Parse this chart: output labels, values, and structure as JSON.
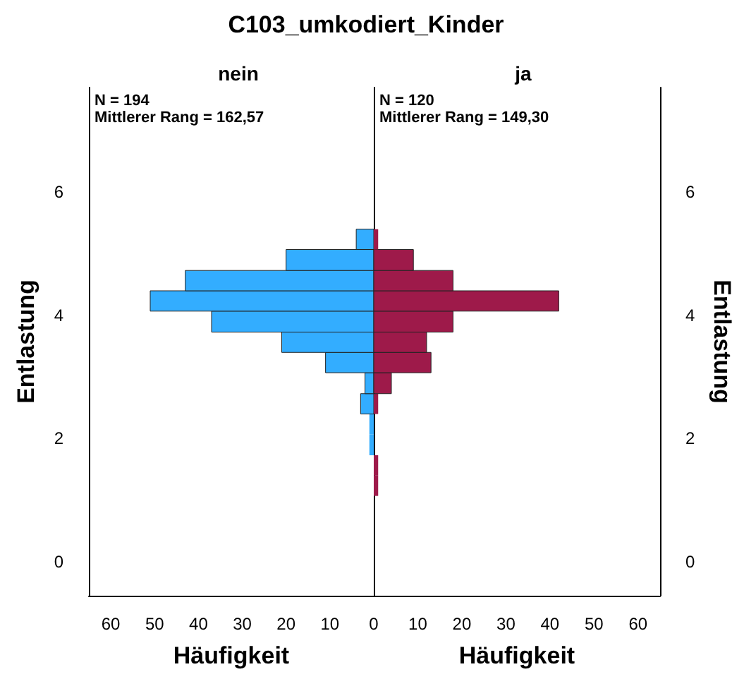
{
  "chart_data": [
    {
      "type": "histogram",
      "orientation": "horizontal",
      "title": "C103_umkodiert_Kinder",
      "subtitle": "nein",
      "xlabel": "Häufigkeit",
      "ylabel": "Entlastung",
      "annotations": [
        "N = 194",
        "Mittlerer Rang = 162,57"
      ],
      "bins": [
        1.73,
        2.07,
        2.4,
        2.73,
        3.07,
        3.4,
        3.73,
        4.07,
        4.4,
        4.73,
        5.07,
        5.4
      ],
      "values": [
        1,
        1,
        3,
        2,
        11,
        21,
        37,
        51,
        43,
        20,
        4
      ],
      "color": "#33adff",
      "xlim": [
        65,
        0
      ],
      "xticks": [
        60,
        50,
        40,
        30,
        20,
        10
      ],
      "ylim": [
        -0.55,
        7.7
      ],
      "yticks": [
        0,
        2,
        4,
        6
      ],
      "grid": false
    },
    {
      "type": "histogram",
      "orientation": "horizontal",
      "subtitle": "ja",
      "xlabel": "Häufigkeit",
      "ylabel": "Entlastung",
      "annotations": [
        "N = 120",
        "Mittlerer Rang = 149,30"
      ],
      "bins": [
        1.07,
        1.4,
        1.73,
        2.4,
        2.73,
        3.07,
        3.4,
        3.73,
        4.07,
        4.4,
        4.73,
        5.07,
        5.4
      ],
      "values": [
        1,
        1,
        0,
        1,
        4,
        13,
        12,
        18,
        42,
        18,
        9,
        1
      ],
      "color": "#9e1a4a",
      "xlim": [
        0,
        65
      ],
      "xticks": [
        0,
        10,
        20,
        30,
        40,
        50,
        60
      ],
      "ylim": [
        -0.55,
        7.7
      ],
      "yticks": [
        0,
        2,
        4,
        6
      ],
      "grid": false
    }
  ]
}
